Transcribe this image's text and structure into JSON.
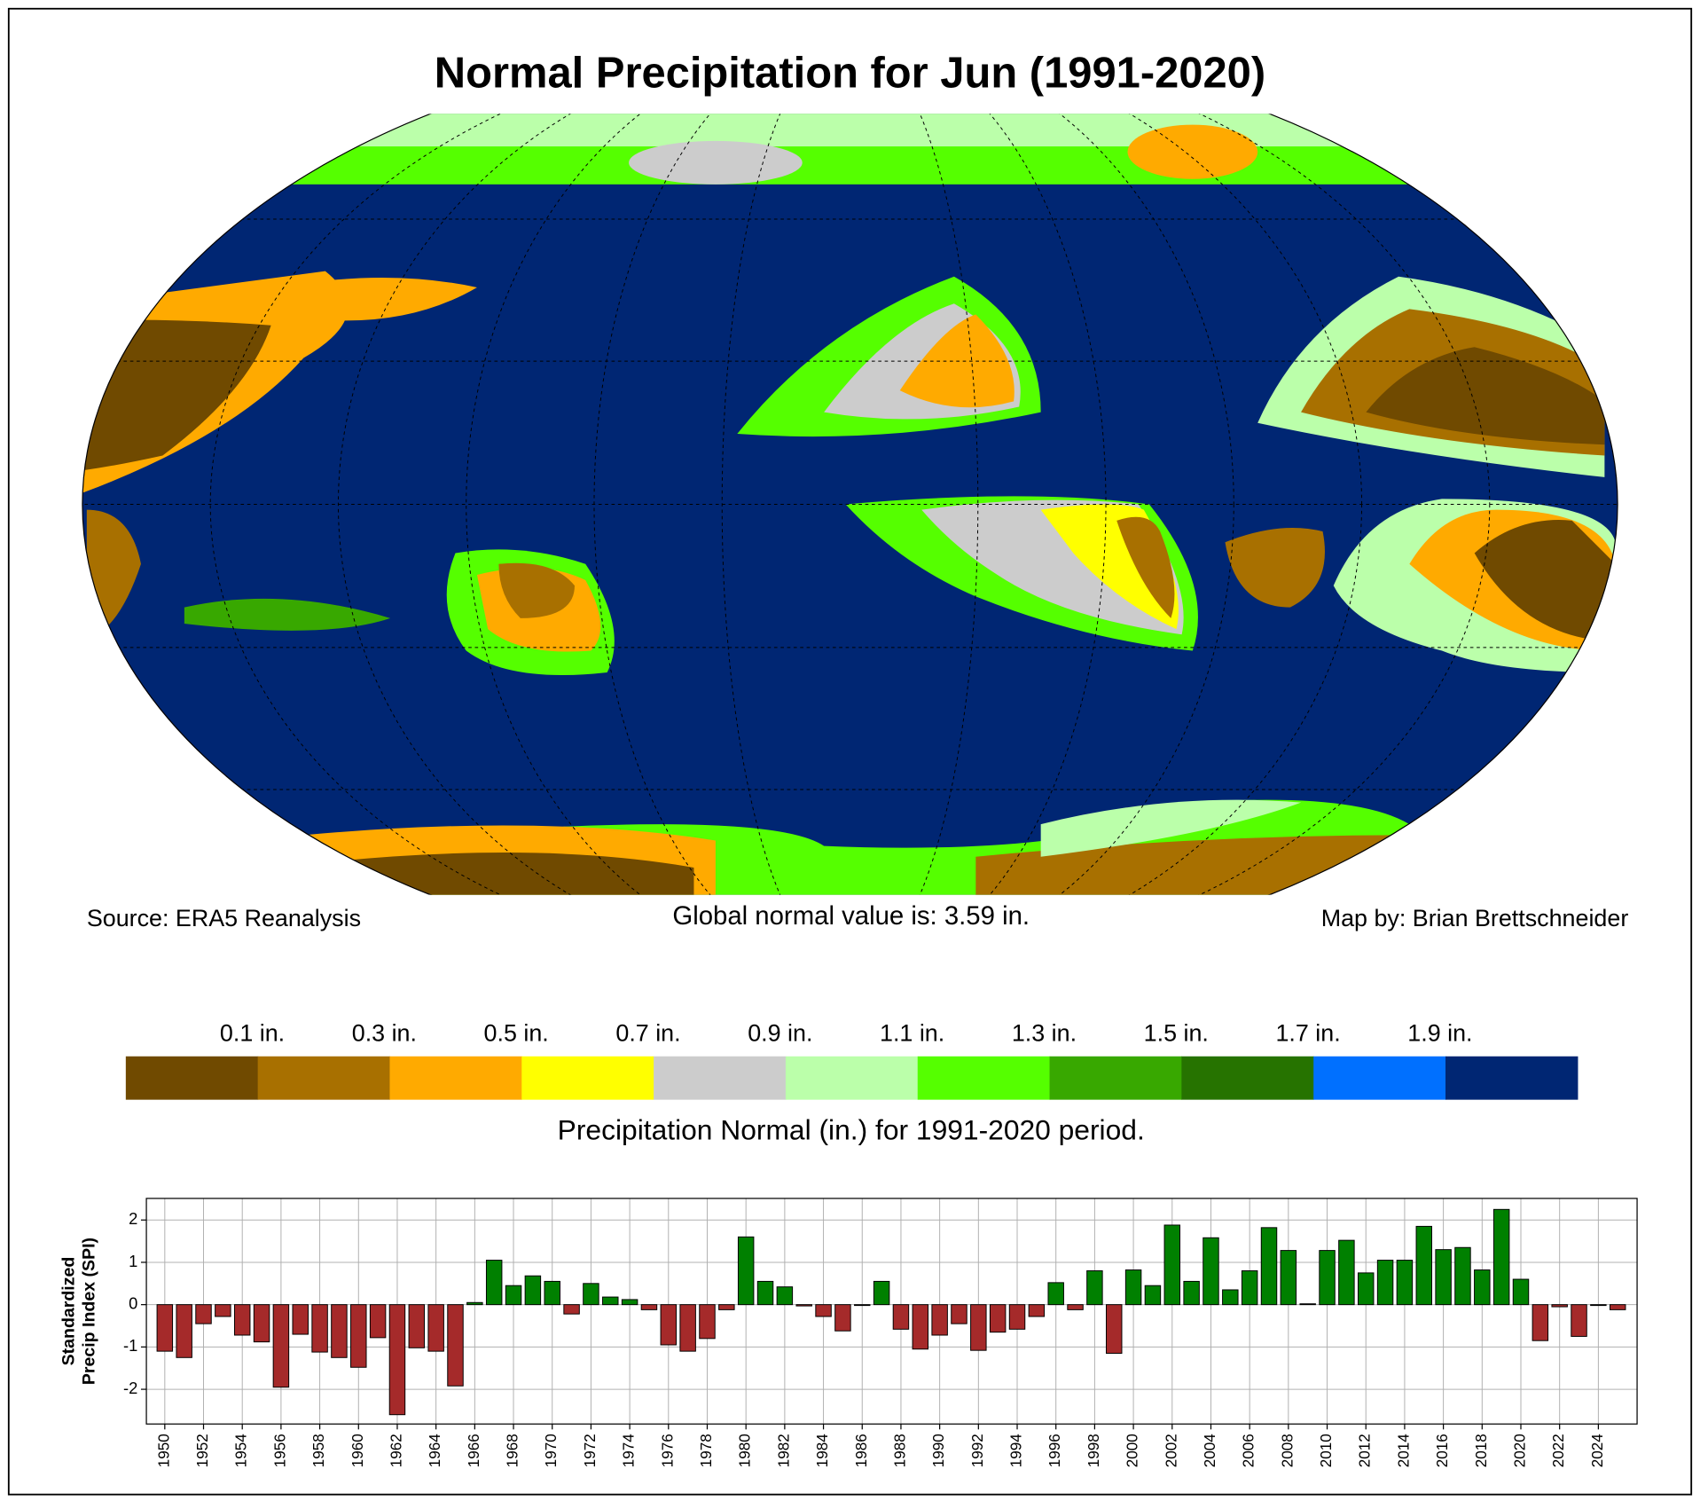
{
  "title": "Normal Precipitation for Jun (1991-2020)",
  "source": "Source: ERA5 Reanalysis",
  "global_normal": "Global normal value is: 3.59 in.",
  "credit": "Map by: Brian Brettschneider",
  "colorbar": {
    "title": "Precipitation Normal (in.) for 1991-2020 period.",
    "lim": [
      -0.1,
      2.1
    ],
    "ticks": [
      {
        "value": 0.1,
        "label": "0.1 in."
      },
      {
        "value": 0.3,
        "label": "0.3 in."
      },
      {
        "value": 0.5,
        "label": "0.5 in."
      },
      {
        "value": 0.7,
        "label": "0.7 in."
      },
      {
        "value": 0.9,
        "label": "0.9 in."
      },
      {
        "value": 1.1,
        "label": "1.1 in."
      },
      {
        "value": 1.3,
        "label": "1.3 in."
      },
      {
        "value": 1.5,
        "label": "1.5 in."
      },
      {
        "value": 1.7,
        "label": "1.7 in."
      },
      {
        "value": 1.9,
        "label": "1.9 in."
      }
    ],
    "colors": [
      "#704a00",
      "#a87000",
      "#ffaa00",
      "#ffff00",
      "#cccccc",
      "#bbffaa",
      "#55ff00",
      "#38a800",
      "#267300",
      "#0070ff",
      "#002673"
    ]
  },
  "chart_data": {
    "type": "bar",
    "ylabel": [
      "Standardized",
      "Precip Index (SPI)"
    ],
    "x": [
      1950,
      1951,
      1952,
      1953,
      1954,
      1955,
      1956,
      1957,
      1958,
      1959,
      1960,
      1961,
      1962,
      1963,
      1964,
      1965,
      1966,
      1967,
      1968,
      1969,
      1970,
      1971,
      1972,
      1973,
      1974,
      1975,
      1976,
      1977,
      1978,
      1979,
      1980,
      1981,
      1982,
      1983,
      1984,
      1985,
      1986,
      1987,
      1988,
      1989,
      1990,
      1991,
      1992,
      1993,
      1994,
      1995,
      1996,
      1997,
      1998,
      1999,
      2000,
      2001,
      2002,
      2003,
      2004,
      2005,
      2006,
      2007,
      2008,
      2009,
      2010,
      2011,
      2012,
      2013,
      2014,
      2015,
      2016,
      2017,
      2018,
      2019,
      2020,
      2021,
      2022,
      2023,
      2024,
      2025
    ],
    "values": [
      -1.1,
      -1.25,
      -0.45,
      -0.28,
      -0.72,
      -0.88,
      -1.95,
      -0.7,
      -1.12,
      -1.25,
      -1.48,
      -0.78,
      -2.6,
      -1.02,
      -1.1,
      -1.92,
      0.05,
      1.05,
      0.45,
      0.68,
      0.55,
      -0.22,
      0.5,
      0.18,
      0.12,
      -0.12,
      -0.95,
      -1.1,
      -0.8,
      -0.12,
      1.6,
      0.55,
      0.42,
      -0.03,
      -0.28,
      -0.62,
      -0.02,
      0.55,
      -0.58,
      -1.05,
      -0.72,
      -0.45,
      -1.08,
      -0.65,
      -0.58,
      -0.28,
      0.52,
      -0.12,
      0.8,
      -1.15,
      0.82,
      0.45,
      1.88,
      0.55,
      1.58,
      0.35,
      0.8,
      1.82,
      1.28,
      0.02,
      1.28,
      1.52,
      0.75,
      1.05,
      1.05,
      1.85,
      1.3,
      1.35,
      0.82,
      2.25,
      0.6,
      -0.85,
      -0.05,
      -0.75,
      -0.02,
      -0.12
    ],
    "positive_color": "#008000",
    "negative_color": "#a52a2a",
    "xlim": [
      1949.05,
      2026.0
    ],
    "xticks": [
      1950,
      1952,
      1954,
      1956,
      1958,
      1960,
      1962,
      1964,
      1966,
      1968,
      1970,
      1972,
      1974,
      1976,
      1978,
      1980,
      1982,
      1984,
      1986,
      1988,
      1990,
      1992,
      1994,
      1996,
      1998,
      2000,
      2002,
      2004,
      2006,
      2008,
      2010,
      2012,
      2014,
      2016,
      2018,
      2020,
      2022,
      2024
    ],
    "ylim": [
      -2.82,
      2.51
    ],
    "yticks": [
      -2,
      -1,
      0,
      1,
      2
    ],
    "grid": true
  }
}
